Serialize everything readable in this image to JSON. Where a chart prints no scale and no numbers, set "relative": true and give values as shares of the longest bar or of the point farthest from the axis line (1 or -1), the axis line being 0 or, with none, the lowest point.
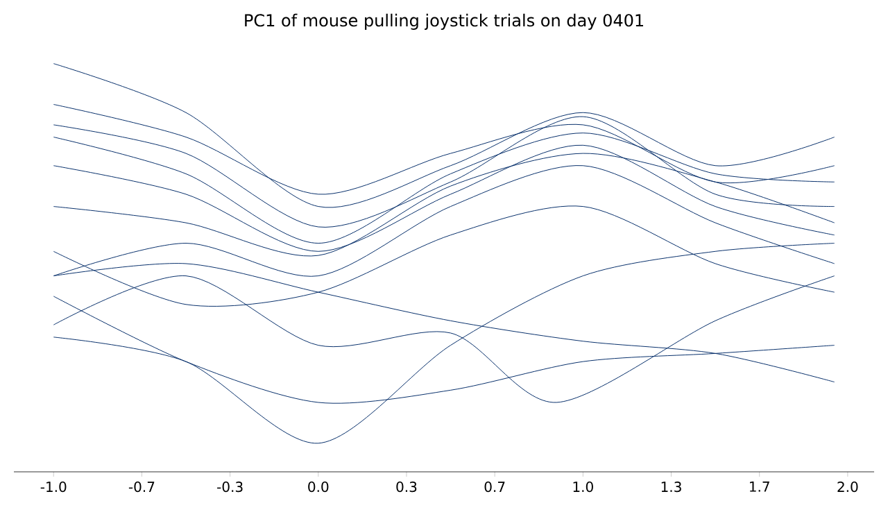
{
  "chart_data": {
    "type": "line",
    "title": "PC1 of mouse pulling joystick trials on day 0401",
    "relative": true,
    "x": [
      -1,
      -0.5,
      0,
      0.5,
      1,
      1.5,
      1.95
    ],
    "xlim": [
      -1.15,
      2.1
    ],
    "xticks": [
      {
        "value": -1,
        "label": "-1.0"
      },
      {
        "value": -0.6667,
        "label": "-0.7"
      },
      {
        "value": -0.3333,
        "label": "-0.3"
      },
      {
        "value": 0,
        "label": "0.0"
      },
      {
        "value": 0.3333,
        "label": "0.3"
      },
      {
        "value": 0.6667,
        "label": "0.7"
      },
      {
        "value": 1,
        "label": "1.0"
      },
      {
        "value": 1.3333,
        "label": "1.3"
      },
      {
        "value": 1.6667,
        "label": "1.7"
      },
      {
        "value": 2,
        "label": "2.0"
      }
    ],
    "series": [
      {
        "color": "#08306b",
        "values": [
          1.0,
          0.88,
          0.65,
          0.75,
          0.88,
          0.75,
          0.82
        ]
      },
      {
        "color": "#08306b",
        "values": [
          0.9,
          0.82,
          0.68,
          0.78,
          0.85,
          0.71,
          0.75
        ]
      },
      {
        "color": "#08306b",
        "values": [
          0.85,
          0.78,
          0.6,
          0.71,
          0.87,
          0.68,
          0.65
        ]
      },
      {
        "color": "#08306b",
        "values": [
          0.82,
          0.73,
          0.56,
          0.73,
          0.83,
          0.73,
          0.71
        ]
      },
      {
        "color": "#08306b",
        "values": [
          0.75,
          0.68,
          0.54,
          0.68,
          0.8,
          0.65,
          0.58
        ]
      },
      {
        "color": "#08306b",
        "values": [
          0.65,
          0.61,
          0.53,
          0.7,
          0.78,
          0.71,
          0.61
        ]
      },
      {
        "color": "#08306b",
        "values": [
          0.48,
          0.56,
          0.48,
          0.65,
          0.75,
          0.61,
          0.51
        ]
      },
      {
        "color": "#08306b",
        "values": [
          0.54,
          0.41,
          0.44,
          0.58,
          0.65,
          0.51,
          0.44
        ]
      },
      {
        "color": "#08306b",
        "values": [
          0.33,
          0.27,
          0.07,
          0.31,
          0.48,
          0.54,
          0.56
        ]
      },
      {
        "color": "#08306b",
        "values": [
          0.43,
          0.27,
          0.17,
          0.2,
          0.27,
          0.29,
          0.31
        ]
      },
      {
        "color": "#08306b",
        "x": [
          -1,
          -0.5,
          0,
          0.5,
          0.9,
          1.5,
          1.95
        ],
        "values": [
          0.36,
          0.48,
          0.31,
          0.34,
          0.17,
          0.37,
          0.48
        ]
      },
      {
        "color": "#08306b",
        "values": [
          0.48,
          0.51,
          0.44,
          0.37,
          0.32,
          0.29,
          0.22
        ]
      }
    ]
  }
}
